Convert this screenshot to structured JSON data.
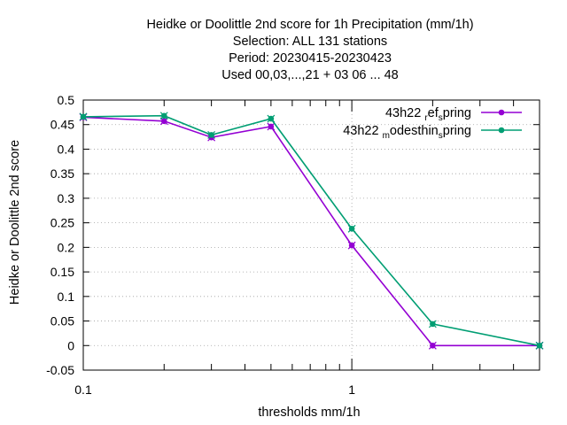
{
  "chart_data": {
    "type": "line",
    "title": "Heidke or Doolittle 2nd score  for 1h Precipitation (mm/1h)",
    "subtitle_lines": [
      "Selection: ALL    131 stations",
      "Period: 20230415-20230423",
      "Used  00,03,...,21  + 03 06 ... 48"
    ],
    "xlabel": "thresholds mm/1h",
    "ylabel": "Heidke or Doolittle 2nd score",
    "x_scale": "log",
    "xlim": [
      0.1,
      5
    ],
    "ylim": [
      -0.05,
      0.5
    ],
    "x_tick_labels": [
      "0.1",
      "1"
    ],
    "y_tick_labels": [
      "-0.05",
      "0",
      "0.05",
      "0.1",
      "0.15",
      "0.2",
      "0.25",
      "0.3",
      "0.35",
      "0.4",
      "0.45",
      "0.5"
    ],
    "grid": true,
    "legend_position": "top-right",
    "x": [
      0.1,
      0.2,
      0.3,
      0.5,
      1,
      2,
      5
    ],
    "series": [
      {
        "name": "43h22_ref_spring",
        "legend_base": "43h22",
        "legend_parts": [
          {
            "sub": "r",
            "text": "ef"
          },
          {
            "sub": "s",
            "text": "pring"
          }
        ],
        "color": "#9400d3",
        "values": [
          0.465,
          0.457,
          0.424,
          0.446,
          0.204,
          0.0,
          0.0
        ]
      },
      {
        "name": "43h22_modesthin_spring",
        "legend_base": "43h22",
        "legend_parts": [
          {
            "sub": "m",
            "text": "odesthin"
          },
          {
            "sub": "s",
            "text": "pring"
          }
        ],
        "color": "#009e73",
        "values": [
          0.466,
          0.468,
          0.429,
          0.462,
          0.238,
          0.044,
          0.0
        ]
      }
    ]
  }
}
